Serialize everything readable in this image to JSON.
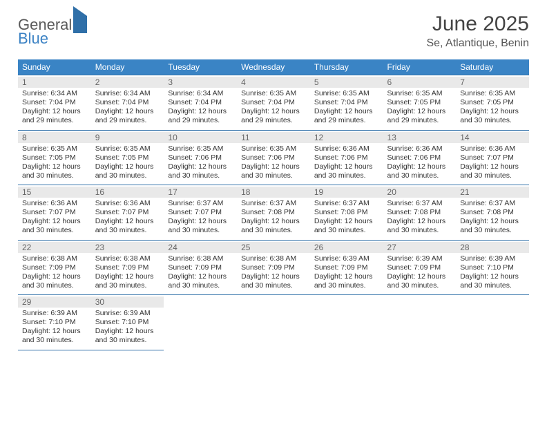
{
  "logo": {
    "line1": "General",
    "line2": "Blue"
  },
  "header": {
    "title": "June 2025",
    "location": "Se, Atlantique, Benin"
  },
  "colors": {
    "header_bg": "#3a84c5",
    "header_text": "#ffffff",
    "row_border": "#2f6fa8",
    "daynum_bg": "#e9e9e9",
    "daynum_text": "#666666",
    "body_text": "#333333",
    "title_text": "#444444",
    "logo_gray": "#5a5a5a",
    "logo_blue": "#3b82c4",
    "page_bg": "#ffffff"
  },
  "typography": {
    "title_fontsize": 30,
    "location_fontsize": 16,
    "weekday_fontsize": 12,
    "daynum_fontsize": 12,
    "cell_fontsize": 10.5,
    "font_family": "Arial"
  },
  "calendar": {
    "type": "table",
    "columns": [
      "Sunday",
      "Monday",
      "Tuesday",
      "Wednesday",
      "Thursday",
      "Friday",
      "Saturday"
    ],
    "weeks": [
      [
        {
          "day": "1",
          "sunrise": "Sunrise: 6:34 AM",
          "sunset": "Sunset: 7:04 PM",
          "day1": "Daylight: 12 hours",
          "day2": "and 29 minutes."
        },
        {
          "day": "2",
          "sunrise": "Sunrise: 6:34 AM",
          "sunset": "Sunset: 7:04 PM",
          "day1": "Daylight: 12 hours",
          "day2": "and 29 minutes."
        },
        {
          "day": "3",
          "sunrise": "Sunrise: 6:34 AM",
          "sunset": "Sunset: 7:04 PM",
          "day1": "Daylight: 12 hours",
          "day2": "and 29 minutes."
        },
        {
          "day": "4",
          "sunrise": "Sunrise: 6:35 AM",
          "sunset": "Sunset: 7:04 PM",
          "day1": "Daylight: 12 hours",
          "day2": "and 29 minutes."
        },
        {
          "day": "5",
          "sunrise": "Sunrise: 6:35 AM",
          "sunset": "Sunset: 7:04 PM",
          "day1": "Daylight: 12 hours",
          "day2": "and 29 minutes."
        },
        {
          "day": "6",
          "sunrise": "Sunrise: 6:35 AM",
          "sunset": "Sunset: 7:05 PM",
          "day1": "Daylight: 12 hours",
          "day2": "and 29 minutes."
        },
        {
          "day": "7",
          "sunrise": "Sunrise: 6:35 AM",
          "sunset": "Sunset: 7:05 PM",
          "day1": "Daylight: 12 hours",
          "day2": "and 30 minutes."
        }
      ],
      [
        {
          "day": "8",
          "sunrise": "Sunrise: 6:35 AM",
          "sunset": "Sunset: 7:05 PM",
          "day1": "Daylight: 12 hours",
          "day2": "and 30 minutes."
        },
        {
          "day": "9",
          "sunrise": "Sunrise: 6:35 AM",
          "sunset": "Sunset: 7:05 PM",
          "day1": "Daylight: 12 hours",
          "day2": "and 30 minutes."
        },
        {
          "day": "10",
          "sunrise": "Sunrise: 6:35 AM",
          "sunset": "Sunset: 7:06 PM",
          "day1": "Daylight: 12 hours",
          "day2": "and 30 minutes."
        },
        {
          "day": "11",
          "sunrise": "Sunrise: 6:35 AM",
          "sunset": "Sunset: 7:06 PM",
          "day1": "Daylight: 12 hours",
          "day2": "and 30 minutes."
        },
        {
          "day": "12",
          "sunrise": "Sunrise: 6:36 AM",
          "sunset": "Sunset: 7:06 PM",
          "day1": "Daylight: 12 hours",
          "day2": "and 30 minutes."
        },
        {
          "day": "13",
          "sunrise": "Sunrise: 6:36 AM",
          "sunset": "Sunset: 7:06 PM",
          "day1": "Daylight: 12 hours",
          "day2": "and 30 minutes."
        },
        {
          "day": "14",
          "sunrise": "Sunrise: 6:36 AM",
          "sunset": "Sunset: 7:07 PM",
          "day1": "Daylight: 12 hours",
          "day2": "and 30 minutes."
        }
      ],
      [
        {
          "day": "15",
          "sunrise": "Sunrise: 6:36 AM",
          "sunset": "Sunset: 7:07 PM",
          "day1": "Daylight: 12 hours",
          "day2": "and 30 minutes."
        },
        {
          "day": "16",
          "sunrise": "Sunrise: 6:36 AM",
          "sunset": "Sunset: 7:07 PM",
          "day1": "Daylight: 12 hours",
          "day2": "and 30 minutes."
        },
        {
          "day": "17",
          "sunrise": "Sunrise: 6:37 AM",
          "sunset": "Sunset: 7:07 PM",
          "day1": "Daylight: 12 hours",
          "day2": "and 30 minutes."
        },
        {
          "day": "18",
          "sunrise": "Sunrise: 6:37 AM",
          "sunset": "Sunset: 7:08 PM",
          "day1": "Daylight: 12 hours",
          "day2": "and 30 minutes."
        },
        {
          "day": "19",
          "sunrise": "Sunrise: 6:37 AM",
          "sunset": "Sunset: 7:08 PM",
          "day1": "Daylight: 12 hours",
          "day2": "and 30 minutes."
        },
        {
          "day": "20",
          "sunrise": "Sunrise: 6:37 AM",
          "sunset": "Sunset: 7:08 PM",
          "day1": "Daylight: 12 hours",
          "day2": "and 30 minutes."
        },
        {
          "day": "21",
          "sunrise": "Sunrise: 6:37 AM",
          "sunset": "Sunset: 7:08 PM",
          "day1": "Daylight: 12 hours",
          "day2": "and 30 minutes."
        }
      ],
      [
        {
          "day": "22",
          "sunrise": "Sunrise: 6:38 AM",
          "sunset": "Sunset: 7:09 PM",
          "day1": "Daylight: 12 hours",
          "day2": "and 30 minutes."
        },
        {
          "day": "23",
          "sunrise": "Sunrise: 6:38 AM",
          "sunset": "Sunset: 7:09 PM",
          "day1": "Daylight: 12 hours",
          "day2": "and 30 minutes."
        },
        {
          "day": "24",
          "sunrise": "Sunrise: 6:38 AM",
          "sunset": "Sunset: 7:09 PM",
          "day1": "Daylight: 12 hours",
          "day2": "and 30 minutes."
        },
        {
          "day": "25",
          "sunrise": "Sunrise: 6:38 AM",
          "sunset": "Sunset: 7:09 PM",
          "day1": "Daylight: 12 hours",
          "day2": "and 30 minutes."
        },
        {
          "day": "26",
          "sunrise": "Sunrise: 6:39 AM",
          "sunset": "Sunset: 7:09 PM",
          "day1": "Daylight: 12 hours",
          "day2": "and 30 minutes."
        },
        {
          "day": "27",
          "sunrise": "Sunrise: 6:39 AM",
          "sunset": "Sunset: 7:09 PM",
          "day1": "Daylight: 12 hours",
          "day2": "and 30 minutes."
        },
        {
          "day": "28",
          "sunrise": "Sunrise: 6:39 AM",
          "sunset": "Sunset: 7:10 PM",
          "day1": "Daylight: 12 hours",
          "day2": "and 30 minutes."
        }
      ],
      [
        {
          "day": "29",
          "sunrise": "Sunrise: 6:39 AM",
          "sunset": "Sunset: 7:10 PM",
          "day1": "Daylight: 12 hours",
          "day2": "and 30 minutes."
        },
        {
          "day": "30",
          "sunrise": "Sunrise: 6:39 AM",
          "sunset": "Sunset: 7:10 PM",
          "day1": "Daylight: 12 hours",
          "day2": "and 30 minutes."
        },
        null,
        null,
        null,
        null,
        null
      ]
    ]
  }
}
